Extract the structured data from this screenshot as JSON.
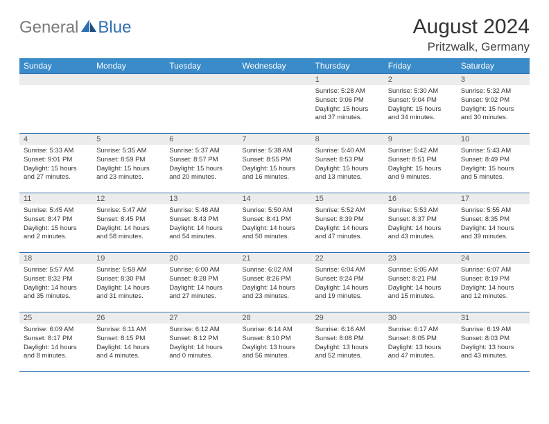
{
  "brand": {
    "part1": "General",
    "part2": "Blue"
  },
  "title": "August 2024",
  "location": "Pritzwalk, Germany",
  "colors": {
    "header_bg": "#3a8bc9",
    "header_text": "#ffffff",
    "border": "#2f6fb0",
    "daynum_bg": "#ececec",
    "logo_gray": "#7a7a7a",
    "logo_blue": "#2f6fb0"
  },
  "weekdays": [
    "Sunday",
    "Monday",
    "Tuesday",
    "Wednesday",
    "Thursday",
    "Friday",
    "Saturday"
  ],
  "weeks": [
    [
      {
        "n": "",
        "sunrise": "",
        "sunset": "",
        "daylight": ""
      },
      {
        "n": "",
        "sunrise": "",
        "sunset": "",
        "daylight": ""
      },
      {
        "n": "",
        "sunrise": "",
        "sunset": "",
        "daylight": ""
      },
      {
        "n": "",
        "sunrise": "",
        "sunset": "",
        "daylight": ""
      },
      {
        "n": "1",
        "sunrise": "Sunrise: 5:28 AM",
        "sunset": "Sunset: 9:06 PM",
        "daylight": "Daylight: 15 hours and 37 minutes."
      },
      {
        "n": "2",
        "sunrise": "Sunrise: 5:30 AM",
        "sunset": "Sunset: 9:04 PM",
        "daylight": "Daylight: 15 hours and 34 minutes."
      },
      {
        "n": "3",
        "sunrise": "Sunrise: 5:32 AM",
        "sunset": "Sunset: 9:02 PM",
        "daylight": "Daylight: 15 hours and 30 minutes."
      }
    ],
    [
      {
        "n": "4",
        "sunrise": "Sunrise: 5:33 AM",
        "sunset": "Sunset: 9:01 PM",
        "daylight": "Daylight: 15 hours and 27 minutes."
      },
      {
        "n": "5",
        "sunrise": "Sunrise: 5:35 AM",
        "sunset": "Sunset: 8:59 PM",
        "daylight": "Daylight: 15 hours and 23 minutes."
      },
      {
        "n": "6",
        "sunrise": "Sunrise: 5:37 AM",
        "sunset": "Sunset: 8:57 PM",
        "daylight": "Daylight: 15 hours and 20 minutes."
      },
      {
        "n": "7",
        "sunrise": "Sunrise: 5:38 AM",
        "sunset": "Sunset: 8:55 PM",
        "daylight": "Daylight: 15 hours and 16 minutes."
      },
      {
        "n": "8",
        "sunrise": "Sunrise: 5:40 AM",
        "sunset": "Sunset: 8:53 PM",
        "daylight": "Daylight: 15 hours and 13 minutes."
      },
      {
        "n": "9",
        "sunrise": "Sunrise: 5:42 AM",
        "sunset": "Sunset: 8:51 PM",
        "daylight": "Daylight: 15 hours and 9 minutes."
      },
      {
        "n": "10",
        "sunrise": "Sunrise: 5:43 AM",
        "sunset": "Sunset: 8:49 PM",
        "daylight": "Daylight: 15 hours and 5 minutes."
      }
    ],
    [
      {
        "n": "11",
        "sunrise": "Sunrise: 5:45 AM",
        "sunset": "Sunset: 8:47 PM",
        "daylight": "Daylight: 15 hours and 2 minutes."
      },
      {
        "n": "12",
        "sunrise": "Sunrise: 5:47 AM",
        "sunset": "Sunset: 8:45 PM",
        "daylight": "Daylight: 14 hours and 58 minutes."
      },
      {
        "n": "13",
        "sunrise": "Sunrise: 5:48 AM",
        "sunset": "Sunset: 8:43 PM",
        "daylight": "Daylight: 14 hours and 54 minutes."
      },
      {
        "n": "14",
        "sunrise": "Sunrise: 5:50 AM",
        "sunset": "Sunset: 8:41 PM",
        "daylight": "Daylight: 14 hours and 50 minutes."
      },
      {
        "n": "15",
        "sunrise": "Sunrise: 5:52 AM",
        "sunset": "Sunset: 8:39 PM",
        "daylight": "Daylight: 14 hours and 47 minutes."
      },
      {
        "n": "16",
        "sunrise": "Sunrise: 5:53 AM",
        "sunset": "Sunset: 8:37 PM",
        "daylight": "Daylight: 14 hours and 43 minutes."
      },
      {
        "n": "17",
        "sunrise": "Sunrise: 5:55 AM",
        "sunset": "Sunset: 8:35 PM",
        "daylight": "Daylight: 14 hours and 39 minutes."
      }
    ],
    [
      {
        "n": "18",
        "sunrise": "Sunrise: 5:57 AM",
        "sunset": "Sunset: 8:32 PM",
        "daylight": "Daylight: 14 hours and 35 minutes."
      },
      {
        "n": "19",
        "sunrise": "Sunrise: 5:59 AM",
        "sunset": "Sunset: 8:30 PM",
        "daylight": "Daylight: 14 hours and 31 minutes."
      },
      {
        "n": "20",
        "sunrise": "Sunrise: 6:00 AM",
        "sunset": "Sunset: 8:28 PM",
        "daylight": "Daylight: 14 hours and 27 minutes."
      },
      {
        "n": "21",
        "sunrise": "Sunrise: 6:02 AM",
        "sunset": "Sunset: 8:26 PM",
        "daylight": "Daylight: 14 hours and 23 minutes."
      },
      {
        "n": "22",
        "sunrise": "Sunrise: 6:04 AM",
        "sunset": "Sunset: 8:24 PM",
        "daylight": "Daylight: 14 hours and 19 minutes."
      },
      {
        "n": "23",
        "sunrise": "Sunrise: 6:05 AM",
        "sunset": "Sunset: 8:21 PM",
        "daylight": "Daylight: 14 hours and 15 minutes."
      },
      {
        "n": "24",
        "sunrise": "Sunrise: 6:07 AM",
        "sunset": "Sunset: 8:19 PM",
        "daylight": "Daylight: 14 hours and 12 minutes."
      }
    ],
    [
      {
        "n": "25",
        "sunrise": "Sunrise: 6:09 AM",
        "sunset": "Sunset: 8:17 PM",
        "daylight": "Daylight: 14 hours and 8 minutes."
      },
      {
        "n": "26",
        "sunrise": "Sunrise: 6:11 AM",
        "sunset": "Sunset: 8:15 PM",
        "daylight": "Daylight: 14 hours and 4 minutes."
      },
      {
        "n": "27",
        "sunrise": "Sunrise: 6:12 AM",
        "sunset": "Sunset: 8:12 PM",
        "daylight": "Daylight: 14 hours and 0 minutes."
      },
      {
        "n": "28",
        "sunrise": "Sunrise: 6:14 AM",
        "sunset": "Sunset: 8:10 PM",
        "daylight": "Daylight: 13 hours and 56 minutes."
      },
      {
        "n": "29",
        "sunrise": "Sunrise: 6:16 AM",
        "sunset": "Sunset: 8:08 PM",
        "daylight": "Daylight: 13 hours and 52 minutes."
      },
      {
        "n": "30",
        "sunrise": "Sunrise: 6:17 AM",
        "sunset": "Sunset: 8:05 PM",
        "daylight": "Daylight: 13 hours and 47 minutes."
      },
      {
        "n": "31",
        "sunrise": "Sunrise: 6:19 AM",
        "sunset": "Sunset: 8:03 PM",
        "daylight": "Daylight: 13 hours and 43 minutes."
      }
    ]
  ]
}
